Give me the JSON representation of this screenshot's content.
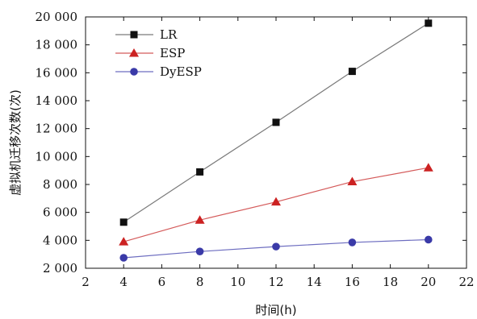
{
  "chart_data": {
    "type": "line",
    "title": "",
    "xlabel": "时间(h)",
    "ylabel": "虚拟机迁移次数(次)",
    "xlim": [
      2,
      22
    ],
    "ylim": [
      2000,
      20000
    ],
    "x_ticks": [
      2,
      4,
      6,
      8,
      10,
      12,
      14,
      16,
      18,
      20,
      22
    ],
    "y_ticks": [
      2000,
      4000,
      6000,
      8000,
      10000,
      12000,
      14000,
      16000,
      18000,
      20000
    ],
    "x_tick_labels": [
      "2",
      "4",
      "6",
      "8",
      "10",
      "12",
      "14",
      "16",
      "18",
      "20",
      "22"
    ],
    "y_tick_labels": [
      "2 000",
      "4 000",
      "6 000",
      "8 000",
      "10 000",
      "12 000",
      "14 000",
      "16 000",
      "18 000",
      "20 000"
    ],
    "x": [
      4,
      8,
      12,
      16,
      20
    ],
    "grid": false,
    "legend_position": "top-left",
    "series": [
      {
        "name": "LR",
        "marker": "square",
        "line_color": "#7a7a7a",
        "marker_color": "#111111",
        "values": [
          5300,
          8900,
          12450,
          16100,
          19550
        ]
      },
      {
        "name": "ESP",
        "marker": "triangle",
        "line_color": "#d45a5a",
        "marker_color": "#cc2222",
        "values": [
          3900,
          5450,
          6750,
          8200,
          9200
        ]
      },
      {
        "name": "DyESP",
        "marker": "circle",
        "line_color": "#6d6dc0",
        "marker_color": "#3a3aa8",
        "values": [
          2750,
          3200,
          3550,
          3850,
          4050
        ]
      }
    ]
  }
}
